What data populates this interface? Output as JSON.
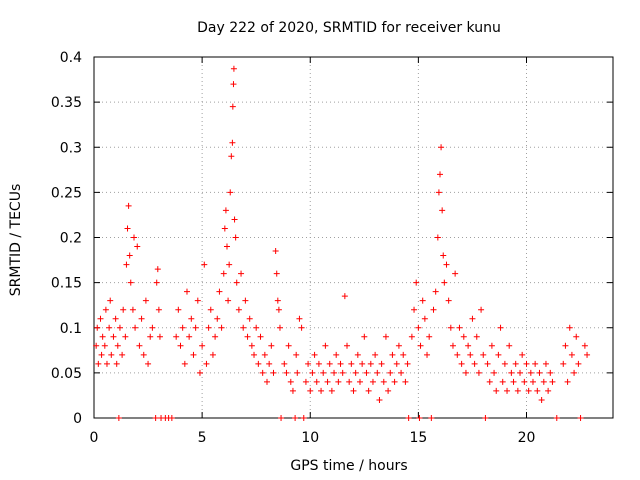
{
  "chart_data": {
    "type": "scatter",
    "title": "Day 222 of 2020, SRMTID for receiver kunu",
    "xlabel": "GPS time / hours",
    "ylabel": "SRMTID / TECUs",
    "xlim": [
      0,
      24
    ],
    "ylim": [
      0,
      0.4
    ],
    "grid": true,
    "xticks": [
      0,
      5,
      10,
      15,
      20
    ],
    "xtick_labels": [
      "0",
      "5",
      "10",
      "15",
      "20"
    ],
    "yticks": [
      0,
      0.05,
      0.1,
      0.15,
      0.2,
      0.25,
      0.3,
      0.35,
      0.4
    ],
    "ytick_labels": [
      "0",
      "0.05",
      "0.1",
      "0.15",
      "0.2",
      "0.25",
      "0.3",
      "0.35",
      "0.4"
    ],
    "marker": "+",
    "color": "#ff0000",
    "series": [
      {
        "name": "SRMTID",
        "points": [
          [
            0.1,
            0.08
          ],
          [
            0.15,
            0.1
          ],
          [
            0.2,
            0.06
          ],
          [
            0.3,
            0.11
          ],
          [
            0.35,
            0.07
          ],
          [
            0.4,
            0.09
          ],
          [
            0.5,
            0.08
          ],
          [
            0.55,
            0.12
          ],
          [
            0.6,
            0.06
          ],
          [
            0.7,
            0.1
          ],
          [
            0.75,
            0.13
          ],
          [
            0.8,
            0.07
          ],
          [
            0.9,
            0.09
          ],
          [
            1.0,
            0.11
          ],
          [
            1.05,
            0.06
          ],
          [
            1.1,
            0.08
          ],
          [
            1.2,
            0.1
          ],
          [
            1.3,
            0.07
          ],
          [
            1.35,
            0.12
          ],
          [
            1.45,
            0.09
          ],
          [
            1.5,
            0.17
          ],
          [
            1.55,
            0.21
          ],
          [
            1.6,
            0.235
          ],
          [
            1.65,
            0.18
          ],
          [
            1.7,
            0.15
          ],
          [
            1.8,
            0.12
          ],
          [
            1.85,
            0.2
          ],
          [
            1.9,
            0.1
          ],
          [
            2.0,
            0.19
          ],
          [
            2.1,
            0.08
          ],
          [
            2.2,
            0.11
          ],
          [
            2.3,
            0.07
          ],
          [
            2.4,
            0.13
          ],
          [
            2.5,
            0.06
          ],
          [
            2.6,
            0.09
          ],
          [
            2.7,
            0.1
          ],
          [
            1.15,
            0.0
          ],
          [
            2.85,
            0.0
          ],
          [
            2.9,
            0.15
          ],
          [
            2.95,
            0.165
          ],
          [
            3.0,
            0.12
          ],
          [
            3.05,
            0.09
          ],
          [
            3.1,
            0.0
          ],
          [
            3.3,
            0.0
          ],
          [
            3.45,
            0.0
          ],
          [
            3.6,
            0.0
          ],
          [
            3.8,
            0.09
          ],
          [
            3.9,
            0.12
          ],
          [
            4.0,
            0.08
          ],
          [
            4.1,
            0.1
          ],
          [
            4.2,
            0.06
          ],
          [
            4.3,
            0.14
          ],
          [
            4.4,
            0.09
          ],
          [
            4.5,
            0.11
          ],
          [
            4.6,
            0.07
          ],
          [
            4.7,
            0.1
          ],
          [
            4.8,
            0.13
          ],
          [
            4.9,
            0.05
          ],
          [
            5.0,
            0.08
          ],
          [
            5.1,
            0.17
          ],
          [
            5.2,
            0.06
          ],
          [
            5.3,
            0.1
          ],
          [
            5.4,
            0.12
          ],
          [
            5.5,
            0.07
          ],
          [
            5.6,
            0.09
          ],
          [
            5.7,
            0.11
          ],
          [
            5.8,
            0.14
          ],
          [
            5.9,
            0.1
          ],
          [
            6.0,
            0.16
          ],
          [
            6.05,
            0.21
          ],
          [
            6.1,
            0.23
          ],
          [
            6.15,
            0.19
          ],
          [
            6.2,
            0.13
          ],
          [
            6.25,
            0.17
          ],
          [
            6.3,
            0.25
          ],
          [
            6.35,
            0.29
          ],
          [
            6.4,
            0.305
          ],
          [
            6.42,
            0.345
          ],
          [
            6.45,
            0.37
          ],
          [
            6.47,
            0.387
          ],
          [
            6.5,
            0.22
          ],
          [
            6.55,
            0.2
          ],
          [
            6.6,
            0.15
          ],
          [
            6.7,
            0.12
          ],
          [
            6.8,
            0.16
          ],
          [
            6.9,
            0.1
          ],
          [
            7.0,
            0.13
          ],
          [
            7.1,
            0.09
          ],
          [
            7.2,
            0.11
          ],
          [
            7.3,
            0.08
          ],
          [
            7.4,
            0.07
          ],
          [
            7.5,
            0.1
          ],
          [
            7.6,
            0.06
          ],
          [
            7.7,
            0.09
          ],
          [
            7.8,
            0.05
          ],
          [
            7.9,
            0.07
          ],
          [
            8.0,
            0.04
          ],
          [
            8.1,
            0.06
          ],
          [
            8.2,
            0.08
          ],
          [
            8.3,
            0.05
          ],
          [
            8.4,
            0.185
          ],
          [
            8.45,
            0.16
          ],
          [
            8.5,
            0.13
          ],
          [
            8.55,
            0.12
          ],
          [
            8.6,
            0.1
          ],
          [
            8.65,
            0.0
          ],
          [
            8.8,
            0.06
          ],
          [
            8.9,
            0.05
          ],
          [
            9.0,
            0.08
          ],
          [
            9.1,
            0.04
          ],
          [
            9.2,
            0.03
          ],
          [
            9.3,
            0.0
          ],
          [
            9.35,
            0.07
          ],
          [
            9.4,
            0.05
          ],
          [
            9.5,
            0.11
          ],
          [
            9.6,
            0.1
          ],
          [
            9.7,
            0.0
          ],
          [
            9.8,
            0.04
          ],
          [
            9.9,
            0.06
          ],
          [
            10.0,
            0.03
          ],
          [
            10.1,
            0.05
          ],
          [
            10.2,
            0.07
          ],
          [
            10.3,
            0.04
          ],
          [
            10.4,
            0.06
          ],
          [
            10.5,
            0.03
          ],
          [
            10.6,
            0.05
          ],
          [
            10.7,
            0.08
          ],
          [
            10.8,
            0.04
          ],
          [
            10.9,
            0.06
          ],
          [
            11.0,
            0.03
          ],
          [
            11.1,
            0.05
          ],
          [
            11.2,
            0.07
          ],
          [
            11.3,
            0.04
          ],
          [
            11.4,
            0.06
          ],
          [
            11.5,
            0.05
          ],
          [
            11.6,
            0.135
          ],
          [
            11.7,
            0.08
          ],
          [
            11.8,
            0.04
          ],
          [
            11.9,
            0.06
          ],
          [
            12.0,
            0.03
          ],
          [
            12.1,
            0.05
          ],
          [
            12.2,
            0.07
          ],
          [
            12.3,
            0.04
          ],
          [
            12.4,
            0.06
          ],
          [
            12.5,
            0.09
          ],
          [
            12.6,
            0.05
          ],
          [
            12.7,
            0.03
          ],
          [
            12.8,
            0.06
          ],
          [
            12.9,
            0.04
          ],
          [
            13.0,
            0.07
          ],
          [
            13.1,
            0.05
          ],
          [
            13.2,
            0.02
          ],
          [
            13.3,
            0.06
          ],
          [
            13.4,
            0.04
          ],
          [
            13.5,
            0.09
          ],
          [
            13.6,
            0.03
          ],
          [
            13.7,
            0.05
          ],
          [
            13.8,
            0.07
          ],
          [
            13.9,
            0.04
          ],
          [
            14.0,
            0.06
          ],
          [
            14.1,
            0.08
          ],
          [
            14.2,
            0.05
          ],
          [
            14.3,
            0.07
          ],
          [
            14.4,
            0.04
          ],
          [
            14.5,
            0.06
          ],
          [
            14.55,
            0.0
          ],
          [
            14.7,
            0.09
          ],
          [
            14.8,
            0.12
          ],
          [
            14.9,
            0.15
          ],
          [
            15.0,
            0.1
          ],
          [
            15.05,
            0.0
          ],
          [
            15.1,
            0.08
          ],
          [
            15.2,
            0.13
          ],
          [
            15.3,
            0.11
          ],
          [
            15.4,
            0.07
          ],
          [
            15.5,
            0.09
          ],
          [
            15.6,
            0.0
          ],
          [
            15.7,
            0.12
          ],
          [
            15.8,
            0.14
          ],
          [
            15.9,
            0.2
          ],
          [
            15.95,
            0.25
          ],
          [
            16.0,
            0.27
          ],
          [
            16.05,
            0.3
          ],
          [
            16.1,
            0.23
          ],
          [
            16.15,
            0.18
          ],
          [
            16.2,
            0.15
          ],
          [
            16.3,
            0.17
          ],
          [
            16.4,
            0.13
          ],
          [
            16.5,
            0.1
          ],
          [
            16.6,
            0.08
          ],
          [
            16.7,
            0.16
          ],
          [
            16.8,
            0.07
          ],
          [
            16.9,
            0.1
          ],
          [
            17.0,
            0.06
          ],
          [
            17.1,
            0.09
          ],
          [
            17.2,
            0.05
          ],
          [
            17.3,
            0.08
          ],
          [
            17.4,
            0.07
          ],
          [
            17.5,
            0.11
          ],
          [
            17.6,
            0.06
          ],
          [
            17.7,
            0.09
          ],
          [
            17.8,
            0.05
          ],
          [
            17.9,
            0.12
          ],
          [
            18.0,
            0.07
          ],
          [
            18.1,
            0.0
          ],
          [
            18.2,
            0.06
          ],
          [
            18.3,
            0.04
          ],
          [
            18.4,
            0.08
          ],
          [
            18.5,
            0.05
          ],
          [
            18.6,
            0.03
          ],
          [
            18.7,
            0.07
          ],
          [
            18.8,
            0.1
          ],
          [
            18.9,
            0.04
          ],
          [
            19.0,
            0.06
          ],
          [
            19.1,
            0.03
          ],
          [
            19.2,
            0.08
          ],
          [
            19.3,
            0.05
          ],
          [
            19.4,
            0.04
          ],
          [
            19.5,
            0.06
          ],
          [
            19.6,
            0.03
          ],
          [
            19.7,
            0.05
          ],
          [
            19.8,
            0.07
          ],
          [
            19.9,
            0.04
          ],
          [
            20.0,
            0.06
          ],
          [
            20.1,
            0.03
          ],
          [
            20.2,
            0.05
          ],
          [
            20.3,
            0.04
          ],
          [
            20.4,
            0.06
          ],
          [
            20.5,
            0.03
          ],
          [
            20.6,
            0.05
          ],
          [
            20.7,
            0.02
          ],
          [
            20.8,
            0.04
          ],
          [
            20.9,
            0.06
          ],
          [
            21.0,
            0.03
          ],
          [
            21.1,
            0.05
          ],
          [
            21.2,
            0.04
          ],
          [
            21.4,
            0.0
          ],
          [
            21.7,
            0.06
          ],
          [
            21.8,
            0.08
          ],
          [
            21.9,
            0.04
          ],
          [
            22.0,
            0.1
          ],
          [
            22.1,
            0.07
          ],
          [
            22.2,
            0.05
          ],
          [
            22.3,
            0.09
          ],
          [
            22.4,
            0.06
          ],
          [
            22.5,
            0.0
          ],
          [
            22.7,
            0.08
          ],
          [
            22.8,
            0.07
          ]
        ]
      }
    ]
  }
}
